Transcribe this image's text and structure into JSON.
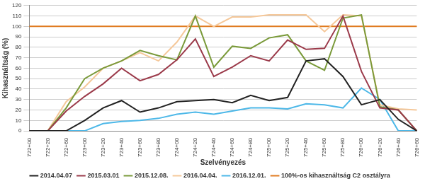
{
  "chart_data": {
    "type": "line",
    "x_label": "Szelvényezés",
    "y_label": "Kihasználtság (%)",
    "categories": [
      "722+00",
      "722+20",
      "722+60",
      "723+00",
      "723+20",
      "723+40",
      "723+60",
      "723+80",
      "724+00",
      "724+20",
      "724+40",
      "724+60",
      "724+80",
      "725+00",
      "725+20",
      "725+40",
      "725+60",
      "725+80",
      "726+00",
      "726+20",
      "726+40",
      "726+60"
    ],
    "series": [
      {
        "name": "2014.04.07",
        "color": "#222222",
        "values": [
          0,
          0,
          0,
          10,
          22,
          29,
          18,
          22,
          28,
          29,
          30,
          27,
          34,
          29,
          32,
          67,
          69,
          52,
          25,
          30,
          11,
          0
        ]
      },
      {
        "name": "2015.03.01",
        "color": "#9b3a4a",
        "values": [
          0,
          0,
          19,
          33,
          45,
          60,
          48,
          54,
          68,
          88,
          52,
          61,
          72,
          67,
          87,
          78,
          79,
          110,
          57,
          22,
          20,
          0
        ]
      },
      {
        "name": "2015.12.08.",
        "color": "#7a9a3a",
        "values": [
          0,
          0,
          22,
          50,
          60,
          67,
          77,
          72,
          68,
          110,
          61,
          81,
          79,
          89,
          92,
          67,
          58,
          108,
          111,
          23,
          20,
          0
        ]
      },
      {
        "name": "2016.04.04.",
        "color": "#f5c89a",
        "values": [
          0,
          0,
          28,
          42,
          60,
          67,
          75,
          67,
          85,
          110,
          100,
          109,
          109,
          111,
          111,
          111,
          95,
          111,
          110,
          25,
          21,
          20
        ]
      },
      {
        "name": "2016.12.01.",
        "color": "#4db8e8",
        "values": [
          0,
          0,
          0,
          0,
          7,
          9,
          10,
          12,
          16,
          18,
          16,
          19,
          22,
          22,
          21,
          26,
          25,
          22,
          41,
          30,
          0,
          0
        ]
      },
      {
        "name": "100%-os kihasználtság C2 osztályra",
        "color": "#e07b20",
        "values": [
          100,
          100,
          100,
          100,
          100,
          100,
          100,
          100,
          100,
          100,
          100,
          100,
          100,
          100,
          100,
          100,
          100,
          100,
          100,
          100,
          100,
          100
        ]
      }
    ],
    "ylim": [
      0,
      120
    ],
    "yticks": [
      0,
      10,
      20,
      30,
      40,
      50,
      60,
      70,
      80,
      90,
      100,
      110,
      120
    ],
    "grid": true,
    "legend": "bottom"
  }
}
